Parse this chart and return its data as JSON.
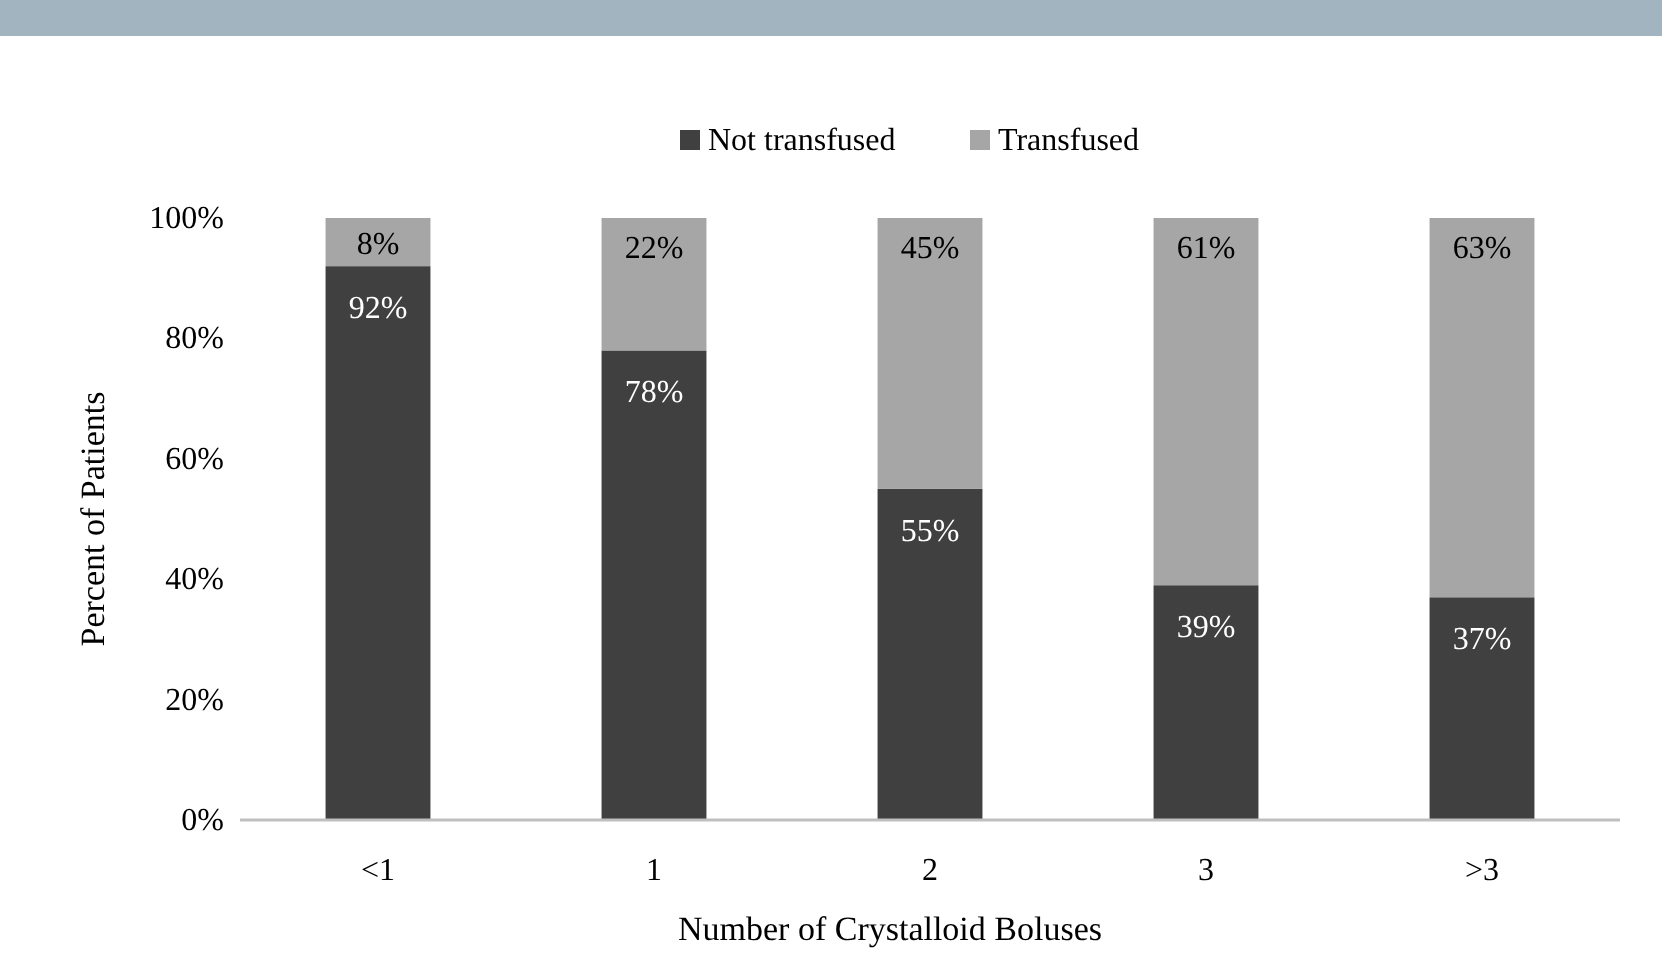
{
  "chart_data": {
    "type": "bar",
    "stacked": true,
    "xlabel": "Number of Crystalloid Boluses",
    "ylabel": "Percent of Patients",
    "categories": [
      "<1",
      "1",
      "2",
      "3",
      ">3"
    ],
    "series": [
      {
        "name": "Not transfused",
        "color": "#404040",
        "values": [
          92,
          78,
          55,
          39,
          37
        ],
        "value_labels": [
          "92%",
          "78%",
          "55%",
          "39%",
          "37%"
        ]
      },
      {
        "name": "Transfused",
        "color": "#a6a6a6",
        "values": [
          8,
          22,
          45,
          61,
          63
        ],
        "value_labels": [
          "8%",
          "22%",
          "45%",
          "61%",
          "63%"
        ]
      }
    ],
    "ylim": [
      0,
      100
    ],
    "yticks": [
      {
        "value": 0,
        "label": "0%"
      },
      {
        "value": 20,
        "label": "20%"
      },
      {
        "value": 40,
        "label": "40%"
      },
      {
        "value": 60,
        "label": "60%"
      },
      {
        "value": 80,
        "label": "80%"
      },
      {
        "value": 100,
        "label": "100%"
      }
    ],
    "grid": false,
    "legend": "top"
  }
}
